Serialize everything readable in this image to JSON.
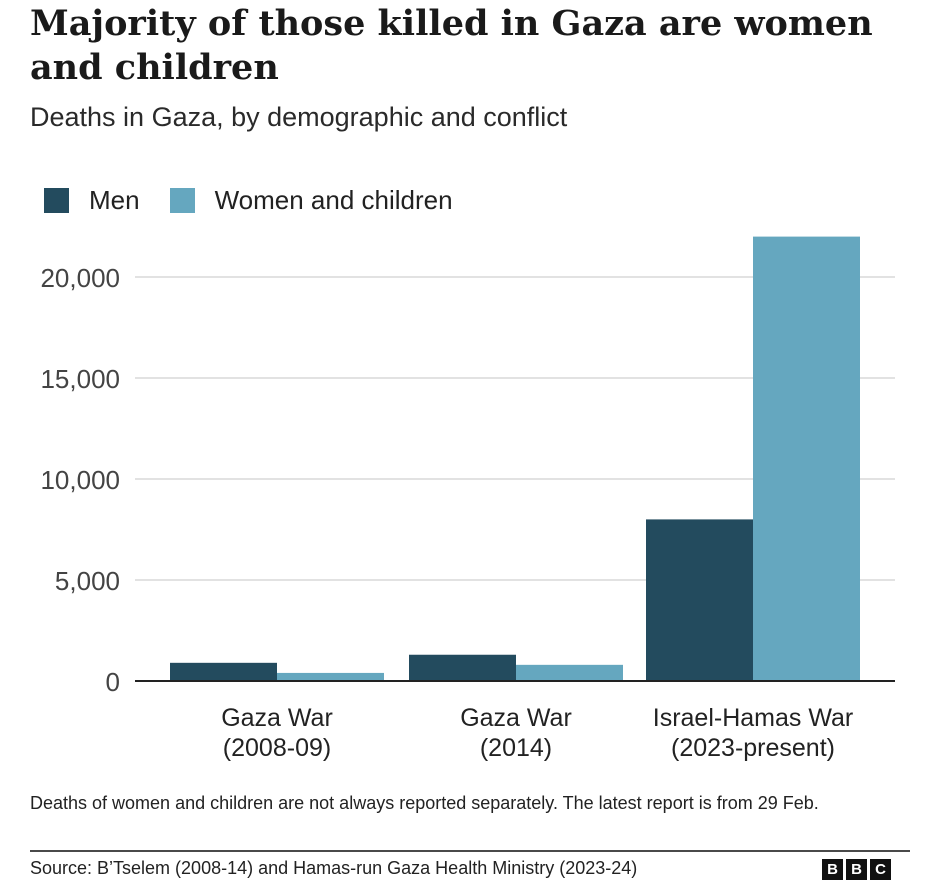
{
  "title": "Majority of those killed in Gaza are women and children",
  "subtitle": "Deaths in Gaza, by demographic and conflict",
  "colors": {
    "men": "#234b5e",
    "women_children": "#65a7bf",
    "grid": "#d9d9d9",
    "axis": "#222222"
  },
  "footnote": "Deaths of women and children are not always reported separately. The latest report is from 29 Feb.",
  "source": "Source: B’Tselem (2008-14) and Hamas-run Gaza Health Ministry (2023-24)",
  "logo": [
    "B",
    "B",
    "C"
  ],
  "chart_data": {
    "type": "bar",
    "categories": [
      [
        "Gaza War",
        "(2008-09)"
      ],
      [
        "Gaza War",
        "(2014)"
      ],
      [
        "Israel-Hamas War",
        "(2023-present)"
      ]
    ],
    "series": [
      {
        "name": "Men",
        "values": [
          900,
          1300,
          8000
        ]
      },
      {
        "name": "Women and children",
        "values": [
          400,
          800,
          22000
        ]
      }
    ],
    "yticks": [
      0,
      5000,
      10000,
      15000,
      20000
    ],
    "ytick_labels": [
      "0",
      "5,000",
      "10,000",
      "15,000",
      "20,000"
    ],
    "ylim": [
      0,
      22000
    ],
    "grid": true,
    "legend": "top-left"
  }
}
